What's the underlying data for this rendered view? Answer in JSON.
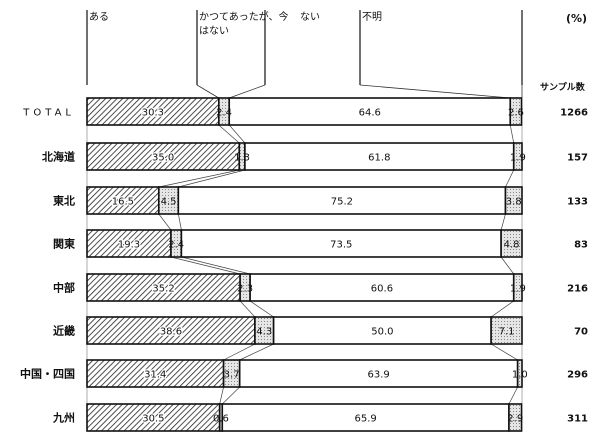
{
  "chart_data": {
    "type": "bar",
    "orientation": "horizontal",
    "stacked": true,
    "unit_label": "(%)",
    "sample_header": "サンプル数",
    "categories": [
      "TOTAL",
      "北海道",
      "東北",
      "関東",
      "中部",
      "近畿",
      "中国・四国",
      "九州"
    ],
    "sample_sizes": [
      1266,
      157,
      133,
      83,
      216,
      70,
      296,
      311
    ],
    "series": [
      {
        "name": "ある",
        "values": [
          30.3,
          35.0,
          16.5,
          19.3,
          35.2,
          38.6,
          31.4,
          30.5
        ],
        "pattern": "diagonal-hatch"
      },
      {
        "name": "かつてあったが、今はない",
        "values": [
          2.4,
          1.3,
          4.5,
          2.4,
          2.3,
          4.3,
          3.7,
          0.6
        ],
        "pattern": "light-dots"
      },
      {
        "name": "ない",
        "values": [
          64.6,
          61.8,
          75.2,
          73.5,
          60.6,
          50.0,
          63.9,
          65.9
        ],
        "pattern": "white"
      },
      {
        "name": "不明",
        "values": [
          2.6,
          1.9,
          3.8,
          4.8,
          1.9,
          7.1,
          1.0,
          2.9
        ],
        "pattern": "light-dots"
      }
    ],
    "legend": {
      "placement": "top",
      "lines": [
        [
          "ある"
        ],
        [
          "かつてあったが、今",
          "はない"
        ],
        [
          "ない"
        ],
        [
          "不明"
        ]
      ]
    },
    "xlim": [
      0,
      100
    ],
    "grid": false
  }
}
